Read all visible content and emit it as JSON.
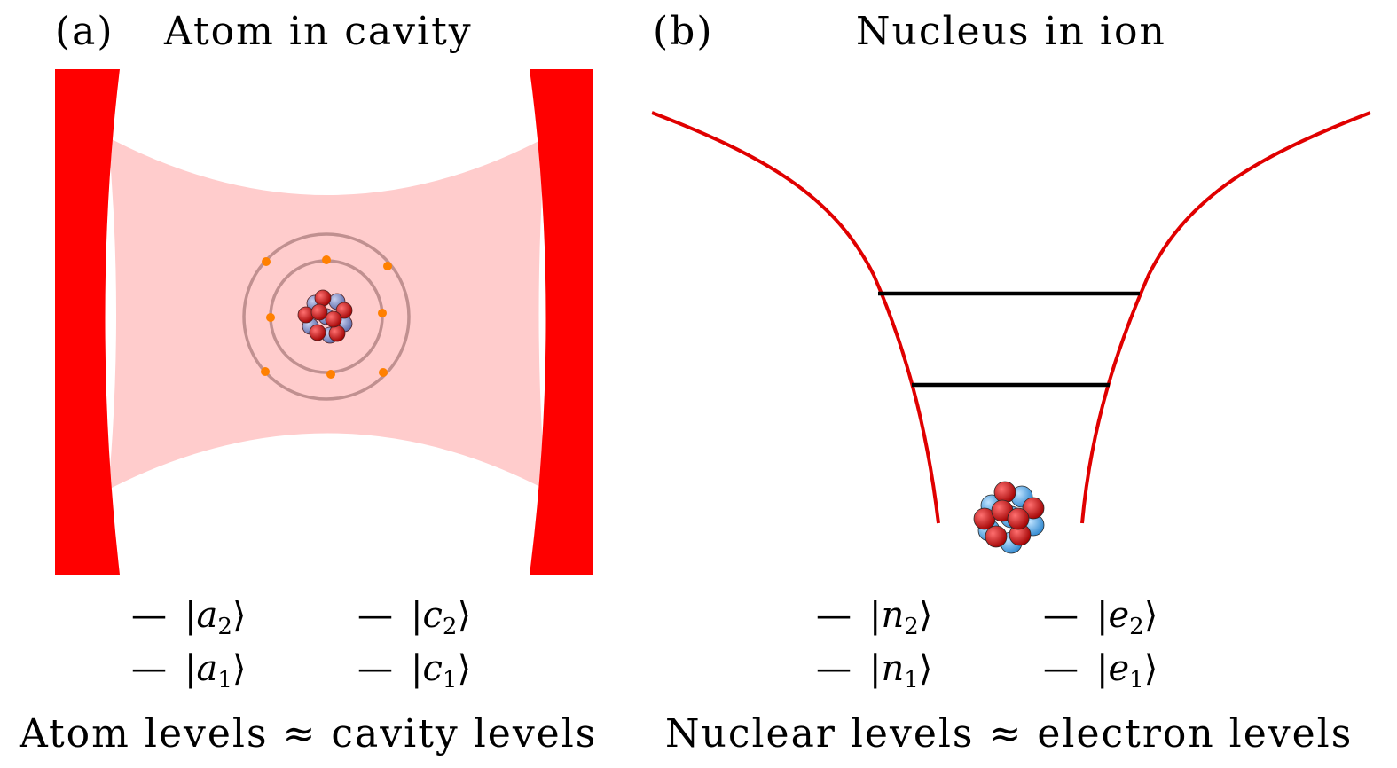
{
  "panel_a": {
    "tag": "(a)",
    "title": "Atom in cavity",
    "levels": [
      {
        "bar": "—",
        "bra": "|",
        "letter": "a",
        "index": "2",
        "ket": "⟩"
      },
      {
        "bar": "—",
        "bra": "|",
        "letter": "c",
        "index": "2",
        "ket": "⟩"
      },
      {
        "bar": "—",
        "bra": "|",
        "letter": "a",
        "index": "1",
        "ket": "⟩"
      },
      {
        "bar": "—",
        "bra": "|",
        "letter": "c",
        "index": "1",
        "ket": "⟩"
      }
    ],
    "caption": "Atom levels ≈ cavity levels"
  },
  "panel_b": {
    "tag": "(b)",
    "title": "Nucleus in ion",
    "levels": [
      {
        "bar": "—",
        "bra": "|",
        "letter": "n",
        "index": "2",
        "ket": "⟩"
      },
      {
        "bar": "—",
        "bra": "|",
        "letter": "e",
        "index": "2",
        "ket": "⟩"
      },
      {
        "bar": "—",
        "bra": "|",
        "letter": "n",
        "index": "1",
        "ket": "⟩"
      },
      {
        "bar": "—",
        "bra": "|",
        "letter": "e",
        "index": "1",
        "ket": "⟩"
      }
    ],
    "caption": "Nuclear levels ≈ electron levels"
  },
  "colors": {
    "mirror": "#ff0000",
    "cavity_field": "#ffcccc",
    "orbit": "#c09090",
    "electron": "#ff8000",
    "proton": "#cc0000",
    "neutron_a": "#8090c8",
    "neutron_b": "#5aaae6",
    "potential": "#e00000",
    "level_line": "#000000"
  },
  "icons": [
    "mirror-left",
    "mirror-right",
    "atom-icon",
    "nucleus-icon",
    "potential-well"
  ]
}
